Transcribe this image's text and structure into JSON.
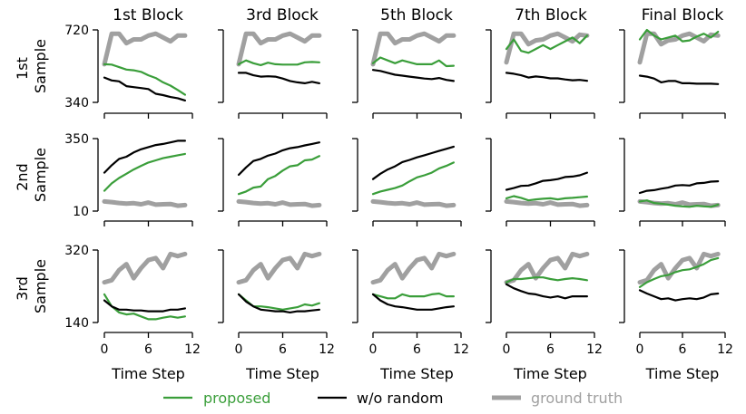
{
  "chart_data": {
    "type": "line",
    "column_titles": [
      "1st Block",
      "3rd Block",
      "5th Block",
      "7th Block",
      "Final Block"
    ],
    "row_labels": [
      [
        "1st",
        "Sample"
      ],
      [
        "2nd",
        "Sample"
      ],
      [
        "3rd",
        "Sample"
      ]
    ],
    "xlabel": "Time Step",
    "xticks": [
      "0",
      "6",
      "12"
    ],
    "xlim": [
      0,
      12
    ],
    "rows": [
      {
        "ylim": [
          340,
          720
        ],
        "yticks": [
          "720",
          "340"
        ]
      },
      {
        "ylim": [
          10,
          350
        ],
        "yticks": [
          "350",
          "10"
        ]
      },
      {
        "ylim": [
          140,
          320
        ],
        "yticks": [
          "320",
          "140"
        ]
      }
    ],
    "legend": [
      {
        "key": "proposed",
        "label": "proposed",
        "color": "#3a9e3a"
      },
      {
        "key": "wo_random",
        "label": "w/o random",
        "color": "#000000"
      },
      {
        "key": "ground_truth",
        "label": "ground truth",
        "color": "#a0a0a0"
      }
    ],
    "x": [
      0,
      1,
      2,
      3,
      4,
      5,
      6,
      7,
      8,
      9,
      10,
      11
    ],
    "panels": [
      [
        {
          "ground_truth": [
            540,
            700,
            700,
            650,
            670,
            670,
            690,
            700,
            680,
            660,
            690,
            690
          ],
          "proposed": [
            540,
            538,
            525,
            512,
            508,
            500,
            482,
            468,
            445,
            428,
            405,
            380
          ],
          "wo_random": [
            470,
            455,
            450,
            425,
            420,
            415,
            410,
            385,
            378,
            368,
            362,
            350
          ]
        },
        {
          "ground_truth": [
            540,
            700,
            700,
            650,
            670,
            670,
            690,
            700,
            680,
            660,
            690,
            690
          ],
          "proposed": [
            540,
            560,
            545,
            535,
            548,
            540,
            538,
            538,
            538,
            550,
            552,
            550
          ],
          "wo_random": [
            495,
            495,
            482,
            475,
            477,
            475,
            465,
            452,
            445,
            440,
            448,
            440
          ]
        },
        {
          "ground_truth": [
            540,
            700,
            700,
            650,
            670,
            670,
            690,
            700,
            680,
            660,
            690,
            690
          ],
          "proposed": [
            545,
            575,
            560,
            545,
            560,
            550,
            540,
            540,
            540,
            560,
            530,
            532
          ],
          "wo_random": [
            510,
            505,
            495,
            485,
            480,
            475,
            470,
            465,
            462,
            468,
            458,
            452
          ]
        },
        {
          "ground_truth": [
            550,
            700,
            700,
            645,
            665,
            670,
            690,
            700,
            680,
            660,
            695,
            690
          ],
          "proposed": [
            620,
            670,
            610,
            600,
            620,
            640,
            620,
            640,
            660,
            680,
            650,
            690
          ],
          "wo_random": [
            495,
            490,
            482,
            470,
            476,
            472,
            466,
            466,
            460,
            456,
            458,
            453
          ]
        },
        {
          "ground_truth": [
            550,
            700,
            700,
            645,
            665,
            670,
            690,
            700,
            680,
            660,
            695,
            690
          ],
          "proposed": [
            670,
            720,
            690,
            670,
            680,
            690,
            660,
            665,
            685,
            700,
            680,
            710
          ],
          "wo_random": [
            480,
            475,
            465,
            445,
            452,
            452,
            440,
            440,
            438,
            438,
            438,
            436
          ]
        }
      ],
      [
        {
          "ground_truth": [
            55,
            52,
            48,
            45,
            47,
            42,
            50,
            40,
            42,
            43,
            35,
            38
          ],
          "proposed": [
            105,
            140,
            165,
            185,
            205,
            222,
            238,
            248,
            258,
            265,
            272,
            278
          ],
          "wo_random": [
            190,
            225,
            255,
            265,
            285,
            300,
            310,
            320,
            325,
            332,
            340,
            340
          ]
        },
        {
          "ground_truth": [
            55,
            52,
            48,
            45,
            47,
            42,
            50,
            40,
            42,
            43,
            35,
            38
          ],
          "proposed": [
            90,
            102,
            120,
            125,
            160,
            175,
            200,
            220,
            225,
            248,
            252,
            268
          ],
          "wo_random": [
            180,
            215,
            245,
            255,
            270,
            280,
            295,
            305,
            310,
            318,
            325,
            332
          ]
        },
        {
          "ground_truth": [
            55,
            52,
            48,
            45,
            47,
            42,
            50,
            40,
            42,
            43,
            35,
            38
          ],
          "proposed": [
            90,
            102,
            110,
            118,
            130,
            150,
            168,
            178,
            190,
            210,
            222,
            238
          ],
          "wo_random": [
            160,
            185,
            205,
            220,
            240,
            250,
            262,
            272,
            282,
            292,
            302,
            312
          ]
        },
        {
          "ground_truth": [
            55,
            52,
            48,
            45,
            47,
            42,
            50,
            40,
            42,
            43,
            35,
            38
          ],
          "proposed": [
            70,
            80,
            72,
            60,
            65,
            68,
            70,
            65,
            70,
            72,
            75,
            78
          ],
          "wo_random": [
            110,
            118,
            128,
            130,
            140,
            152,
            155,
            160,
            170,
            172,
            178,
            190
          ]
        },
        {
          "ground_truth": [
            55,
            52,
            48,
            45,
            47,
            42,
            50,
            40,
            42,
            43,
            35,
            38
          ],
          "proposed": [
            55,
            60,
            48,
            45,
            40,
            35,
            32,
            30,
            35,
            32,
            30,
            40
          ],
          "wo_random": [
            95,
            105,
            108,
            115,
            120,
            130,
            132,
            130,
            140,
            142,
            148,
            150
          ]
        }
      ],
      [
        {
          "ground_truth": [
            240,
            245,
            270,
            285,
            250,
            275,
            295,
            300,
            275,
            310,
            305,
            310
          ],
          "proposed": [
            210,
            180,
            165,
            160,
            162,
            155,
            148,
            148,
            152,
            155,
            152,
            155
          ],
          "wo_random": [
            195,
            180,
            172,
            172,
            170,
            170,
            168,
            168,
            168,
            172,
            172,
            175
          ]
        },
        {
          "ground_truth": [
            240,
            245,
            270,
            285,
            250,
            275,
            295,
            300,
            275,
            310,
            305,
            310
          ],
          "proposed": [
            210,
            195,
            180,
            180,
            178,
            175,
            172,
            175,
            178,
            185,
            182,
            188
          ],
          "wo_random": [
            210,
            192,
            180,
            172,
            170,
            168,
            168,
            165,
            168,
            168,
            170,
            172
          ]
        },
        {
          "ground_truth": [
            240,
            245,
            270,
            285,
            250,
            275,
            295,
            300,
            275,
            310,
            305,
            310
          ],
          "proposed": [
            210,
            205,
            200,
            200,
            210,
            205,
            205,
            205,
            210,
            212,
            205,
            205
          ],
          "wo_random": [
            210,
            195,
            185,
            180,
            178,
            175,
            172,
            172,
            172,
            175,
            178,
            180
          ]
        },
        {
          "ground_truth": [
            240,
            245,
            270,
            285,
            250,
            275,
            295,
            300,
            275,
            310,
            305,
            310
          ],
          "proposed": [
            240,
            248,
            248,
            250,
            252,
            252,
            248,
            245,
            248,
            250,
            248,
            245
          ],
          "wo_random": [
            235,
            225,
            218,
            212,
            210,
            205,
            202,
            205,
            200,
            205,
            205,
            205
          ]
        },
        {
          "ground_truth": [
            240,
            245,
            270,
            285,
            250,
            275,
            295,
            300,
            275,
            310,
            305,
            310
          ],
          "proposed": [
            228,
            240,
            248,
            255,
            258,
            265,
            270,
            272,
            278,
            285,
            295,
            300
          ],
          "wo_random": [
            220,
            212,
            205,
            198,
            200,
            195,
            198,
            200,
            198,
            202,
            210,
            212
          ]
        }
      ]
    ]
  }
}
